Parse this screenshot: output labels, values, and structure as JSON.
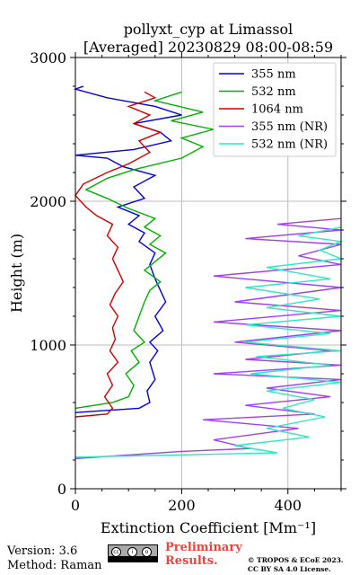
{
  "chart_data": {
    "type": "line",
    "title": "pollyxt_cyp at Limassol",
    "subtitle": "[Averaged] 20230829 08:00-08:59",
    "xlabel": "Extinction Coefficient [Mm⁻¹]",
    "ylabel": "Height (m)",
    "xlim": [
      0,
      500
    ],
    "ylim": [
      0,
      3000
    ],
    "xticks": [
      0,
      200,
      400
    ],
    "yticks": [
      0,
      1000,
      2000,
      3000
    ],
    "grid": true,
    "legend_position": "upper-right",
    "series": [
      {
        "name": "355 nm",
        "color": "#0000e0",
        "points": [
          [
            0,
            530
          ],
          [
            40,
            540
          ],
          [
            120,
            560
          ],
          [
            140,
            600
          ],
          [
            135,
            680
          ],
          [
            150,
            760
          ],
          [
            140,
            880
          ],
          [
            155,
            960
          ],
          [
            140,
            1020
          ],
          [
            165,
            1100
          ],
          [
            150,
            1200
          ],
          [
            170,
            1300
          ],
          [
            160,
            1380
          ],
          [
            150,
            1460
          ],
          [
            140,
            1560
          ],
          [
            150,
            1640
          ],
          [
            120,
            1720
          ],
          [
            130,
            1780
          ],
          [
            100,
            1840
          ],
          [
            120,
            1900
          ],
          [
            80,
            1960
          ],
          [
            130,
            2020
          ],
          [
            110,
            2100
          ],
          [
            150,
            2180
          ],
          [
            90,
            2240
          ],
          [
            60,
            2300
          ],
          [
            0,
            2320
          ],
          [
            110,
            2360
          ],
          [
            180,
            2420
          ],
          [
            160,
            2480
          ],
          [
            110,
            2540
          ],
          [
            200,
            2600
          ],
          [
            150,
            2660
          ],
          [
            60,
            2720
          ],
          [
            0,
            2780
          ],
          [
            15,
            2800
          ]
        ]
      },
      {
        "name": "532 nm",
        "color": "#00b000",
        "points": [
          [
            0,
            560
          ],
          [
            70,
            600
          ],
          [
            100,
            640
          ],
          [
            110,
            720
          ],
          [
            95,
            800
          ],
          [
            120,
            880
          ],
          [
            105,
            960
          ],
          [
            130,
            1020
          ],
          [
            110,
            1100
          ],
          [
            120,
            1200
          ],
          [
            130,
            1300
          ],
          [
            140,
            1380
          ],
          [
            160,
            1440
          ],
          [
            130,
            1520
          ],
          [
            150,
            1580
          ],
          [
            170,
            1640
          ],
          [
            140,
            1700
          ],
          [
            160,
            1760
          ],
          [
            130,
            1820
          ],
          [
            150,
            1880
          ],
          [
            100,
            1950
          ],
          [
            60,
            2020
          ],
          [
            20,
            2080
          ],
          [
            60,
            2160
          ],
          [
            110,
            2220
          ],
          [
            200,
            2300
          ],
          [
            240,
            2380
          ],
          [
            200,
            2440
          ],
          [
            260,
            2500
          ],
          [
            180,
            2560
          ],
          [
            240,
            2620
          ],
          [
            150,
            2700
          ],
          [
            200,
            2760
          ]
        ]
      },
      {
        "name": "1064 nm",
        "color": "#d00000",
        "points": [
          [
            0,
            500
          ],
          [
            60,
            520
          ],
          [
            70,
            560
          ],
          [
            55,
            640
          ],
          [
            70,
            720
          ],
          [
            60,
            800
          ],
          [
            80,
            880
          ],
          [
            65,
            960
          ],
          [
            75,
            1040
          ],
          [
            70,
            1120
          ],
          [
            80,
            1200
          ],
          [
            65,
            1280
          ],
          [
            75,
            1360
          ],
          [
            90,
            1440
          ],
          [
            80,
            1520
          ],
          [
            70,
            1600
          ],
          [
            80,
            1680
          ],
          [
            60,
            1760
          ],
          [
            70,
            1840
          ],
          [
            40,
            1900
          ],
          [
            20,
            1960
          ],
          [
            0,
            2040
          ],
          [
            15,
            2120
          ],
          [
            60,
            2200
          ],
          [
            100,
            2260
          ],
          [
            140,
            2340
          ],
          [
            120,
            2420
          ],
          [
            160,
            2480
          ],
          [
            110,
            2540
          ],
          [
            140,
            2600
          ],
          [
            100,
            2660
          ],
          [
            150,
            2720
          ],
          [
            130,
            2760
          ]
        ]
      },
      {
        "name": "355 nm (NR)",
        "color": "#a040f0",
        "points": [
          [
            0,
            210
          ],
          [
            200,
            260
          ],
          [
            330,
            280
          ],
          [
            260,
            340
          ],
          [
            420,
            420
          ],
          [
            240,
            480
          ],
          [
            450,
            520
          ],
          [
            320,
            580
          ],
          [
            480,
            640
          ],
          [
            360,
            700
          ],
          [
            500,
            760
          ],
          [
            260,
            800
          ],
          [
            500,
            860
          ],
          [
            320,
            900
          ],
          [
            480,
            960
          ],
          [
            300,
            1020
          ],
          [
            500,
            1100
          ],
          [
            260,
            1160
          ],
          [
            500,
            1240
          ],
          [
            300,
            1300
          ],
          [
            500,
            1400
          ],
          [
            260,
            1480
          ],
          [
            500,
            1560
          ],
          [
            420,
            1620
          ],
          [
            500,
            1700
          ],
          [
            320,
            1740
          ],
          [
            500,
            1800
          ],
          [
            380,
            1840
          ],
          [
            500,
            1880
          ]
        ]
      },
      {
        "name": "532 nm (NR)",
        "color": "#30e8c0",
        "points": [
          [
            0,
            220
          ],
          [
            380,
            250
          ],
          [
            300,
            300
          ],
          [
            440,
            360
          ],
          [
            360,
            420
          ],
          [
            470,
            500
          ],
          [
            390,
            560
          ],
          [
            450,
            620
          ],
          [
            360,
            680
          ],
          [
            500,
            740
          ],
          [
            330,
            800
          ],
          [
            480,
            860
          ],
          [
            340,
            920
          ],
          [
            500,
            960
          ],
          [
            320,
            1020
          ],
          [
            480,
            1080
          ],
          [
            320,
            1140
          ],
          [
            500,
            1200
          ],
          [
            360,
            1260
          ],
          [
            460,
            1320
          ],
          [
            320,
            1400
          ],
          [
            480,
            1460
          ],
          [
            360,
            1540
          ],
          [
            500,
            1600
          ],
          [
            460,
            1660
          ],
          [
            500,
            1720
          ],
          [
            420,
            1760
          ],
          [
            500,
            1820
          ]
        ]
      }
    ]
  },
  "footer": {
    "version": "Version: 3.6",
    "method": "Method: Raman",
    "preliminary_line1": "Preliminary",
    "preliminary_line2": "Results.",
    "copyright_line1": "© TROPOS & ECoE 2023.",
    "copyright_line2": "CC BY SA 4.0 License."
  },
  "license_badge": {
    "icon": "cc-by-sa-badge",
    "text": "BY SA"
  }
}
